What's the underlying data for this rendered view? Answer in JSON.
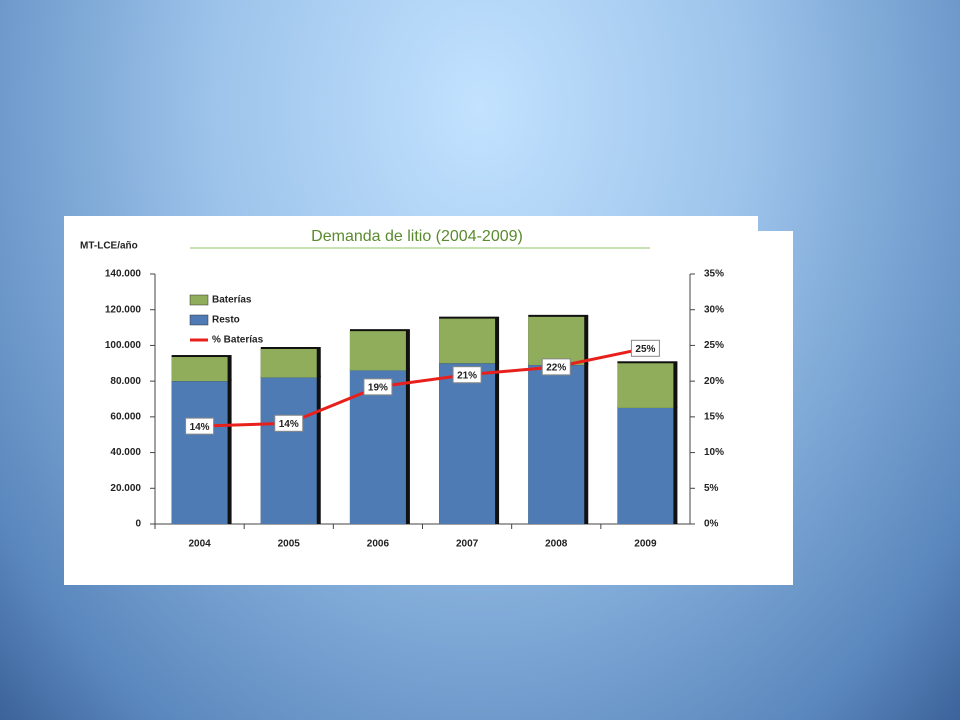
{
  "chart_data": {
    "type": "bar-line",
    "title": "Demanda de litio (2004-2009)",
    "y_label": "MT-LCE/año",
    "categories": [
      "2004",
      "2005",
      "2006",
      "2007",
      "2008",
      "2009"
    ],
    "series": [
      {
        "name": "Baterías",
        "type": "bar",
        "color": "#8fad5a",
        "values": [
          13500,
          16000,
          22000,
          25000,
          27000,
          25000
        ]
      },
      {
        "name": "Resto",
        "type": "bar",
        "color": "#4f7bb5",
        "values": [
          80000,
          82000,
          86000,
          90000,
          89000,
          65000
        ]
      },
      {
        "name": "% Baterías",
        "type": "line",
        "axis": "y2",
        "color": "#e8201c",
        "values": [
          13.7,
          14.1,
          19.2,
          20.9,
          22,
          24.6
        ],
        "value_labels": [
          "14%",
          "14%",
          "19%",
          "21%",
          "22%",
          "25%"
        ]
      }
    ],
    "ylim": [
      0,
      140000
    ],
    "yticks": [
      0,
      {
        "value": 20000,
        "label": "20.000"
      },
      {
        "value": 40000,
        "label": "40.000"
      },
      {
        "value": 60000,
        "label": "60.000"
      },
      {
        "value": 80000,
        "label": "80.000"
      },
      {
        "value": 100000,
        "label": "100.000"
      },
      {
        "value": 120000,
        "label": "120.000"
      },
      {
        "value": 140000,
        "label": "140.000"
      }
    ],
    "y2lim": [
      0,
      35
    ],
    "y2ticks": [
      {
        "value": 0,
        "label": "0%"
      },
      {
        "value": 5,
        "label": "5%"
      },
      {
        "value": 10,
        "label": "10%"
      },
      {
        "value": 15,
        "label": "15%"
      },
      {
        "value": 20,
        "label": "20%"
      },
      {
        "value": 25,
        "label": "25%"
      },
      {
        "value": 30,
        "label": "30%"
      },
      {
        "value": 35,
        "label": "35%"
      }
    ]
  }
}
